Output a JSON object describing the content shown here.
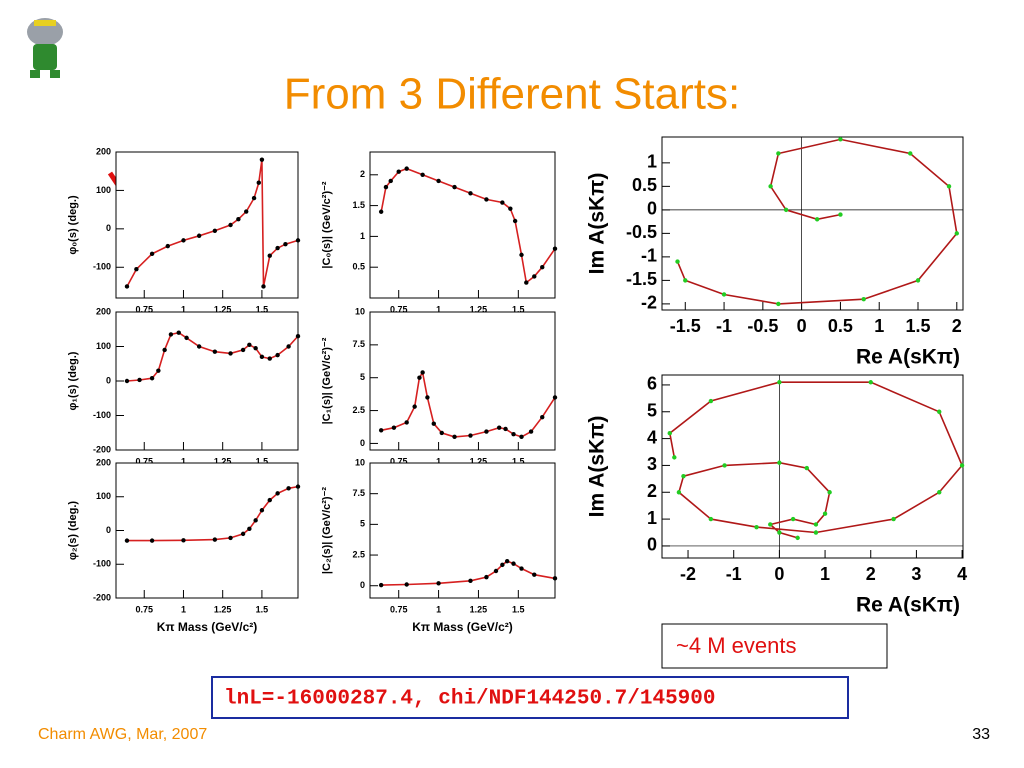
{
  "header": {
    "title": "From 3 Different Starts:"
  },
  "footer": {
    "left": "Charm AWG, Mar, 2007",
    "page": "33"
  },
  "notes": {
    "events": "~4 M events",
    "fit": "lnL=-16000287.4, chi/NDF144250.7/145900"
  },
  "chart_data": [
    {
      "type": "line",
      "ylabel": "φ₀(s)  (deg.)",
      "color": "#d62020",
      "marker_color": "#000000",
      "x": [
        0.64,
        0.7,
        0.8,
        0.9,
        1.0,
        1.1,
        1.2,
        1.3,
        1.35,
        1.4,
        1.45,
        1.48,
        1.5,
        1.51,
        1.55,
        1.6,
        1.65,
        1.73
      ],
      "values": [
        -150,
        -105,
        -65,
        -45,
        -30,
        -18,
        -5,
        10,
        25,
        45,
        80,
        120,
        180,
        -150,
        -70,
        -50,
        -40,
        -30
      ],
      "xlim": [
        0.57,
        1.73
      ],
      "ylim": [
        -180,
        200
      ],
      "xticks": [
        0.75,
        1,
        1.25,
        1.5
      ],
      "yticks": [
        -100,
        0,
        100,
        200
      ]
    },
    {
      "type": "line",
      "ylabel": "|C₀(s)|  (GeV/c²)⁻²",
      "color": "#d62020",
      "marker_color": "#000000",
      "x": [
        0.64,
        0.67,
        0.7,
        0.75,
        0.8,
        0.9,
        1.0,
        1.1,
        1.2,
        1.3,
        1.4,
        1.45,
        1.48,
        1.52,
        1.55,
        1.6,
        1.65,
        1.73
      ],
      "values": [
        1.4,
        1.8,
        1.9,
        2.05,
        2.1,
        2.0,
        1.9,
        1.8,
        1.7,
        1.6,
        1.55,
        1.45,
        1.25,
        0.7,
        0.25,
        0.35,
        0.5,
        0.8
      ],
      "xlim": [
        0.57,
        1.73
      ],
      "ylim": [
        0,
        2.37
      ],
      "xticks": [
        0.75,
        1,
        1.25,
        1.5
      ],
      "yticks": [
        0.5,
        1,
        1.5,
        2
      ]
    },
    {
      "type": "line",
      "ylabel": "φ₁(s)  (deg.)",
      "color": "#d62020",
      "marker_color": "#000000",
      "x": [
        0.64,
        0.72,
        0.8,
        0.84,
        0.88,
        0.92,
        0.97,
        1.02,
        1.1,
        1.2,
        1.3,
        1.38,
        1.42,
        1.46,
        1.5,
        1.55,
        1.6,
        1.67,
        1.73
      ],
      "values": [
        0,
        3,
        8,
        30,
        90,
        135,
        140,
        125,
        100,
        85,
        80,
        90,
        105,
        95,
        70,
        65,
        75,
        100,
        130
      ],
      "xlim": [
        0.57,
        1.73
      ],
      "ylim": [
        -200,
        200
      ],
      "xticks": [
        0.75,
        1,
        1.25,
        1.5
      ],
      "yticks": [
        -200,
        -100,
        0,
        100,
        200
      ]
    },
    {
      "type": "line",
      "ylabel": "|C₁(s)|  (GeV/c²)⁻²",
      "color": "#d62020",
      "marker_color": "#000000",
      "x": [
        0.64,
        0.72,
        0.8,
        0.85,
        0.88,
        0.9,
        0.93,
        0.97,
        1.02,
        1.1,
        1.2,
        1.3,
        1.38,
        1.42,
        1.47,
        1.52,
        1.58,
        1.65,
        1.73
      ],
      "values": [
        1,
        1.2,
        1.6,
        2.8,
        5,
        5.4,
        3.5,
        1.5,
        0.8,
        0.5,
        0.6,
        0.9,
        1.2,
        1.1,
        0.7,
        0.5,
        0.9,
        2,
        3.5
      ],
      "xlim": [
        0.57,
        1.73
      ],
      "ylim": [
        -0.5,
        10
      ],
      "xticks": [
        0.75,
        1,
        1.25,
        1.5
      ],
      "yticks": [
        0,
        2.5,
        5,
        7.5,
        10
      ]
    },
    {
      "type": "line",
      "ylabel": "φ₂(s)  (deg.)",
      "xlabel": "Kπ Mass (GeV/c²)",
      "color": "#d62020",
      "marker_color": "#000000",
      "x": [
        0.64,
        0.8,
        1.0,
        1.2,
        1.3,
        1.38,
        1.42,
        1.46,
        1.5,
        1.55,
        1.6,
        1.67,
        1.73
      ],
      "values": [
        -30,
        -30,
        -29,
        -27,
        -22,
        -10,
        5,
        30,
        60,
        90,
        110,
        125,
        130
      ],
      "xlim": [
        0.57,
        1.73
      ],
      "ylim": [
        -200,
        200
      ],
      "xticks": [
        0.75,
        1,
        1.25,
        1.5
      ],
      "yticks": [
        -200,
        -100,
        0,
        100,
        200
      ]
    },
    {
      "type": "line",
      "ylabel": "|C₂(s)|  (GeV/c²)⁻²",
      "xlabel": "Kπ Mass (GeV/c²)",
      "color": "#d62020",
      "marker_color": "#000000",
      "x": [
        0.64,
        0.8,
        1.0,
        1.2,
        1.3,
        1.36,
        1.4,
        1.43,
        1.47,
        1.52,
        1.6,
        1.73
      ],
      "values": [
        0.05,
        0.1,
        0.2,
        0.4,
        0.7,
        1.2,
        1.7,
        2.0,
        1.8,
        1.4,
        0.9,
        0.6
      ],
      "xlim": [
        0.57,
        1.73
      ],
      "ylim": [
        -1,
        10
      ],
      "xticks": [
        0.75,
        1,
        1.25,
        1.5
      ],
      "yticks": [
        0,
        2.5,
        5,
        7.5,
        10
      ]
    },
    {
      "type": "line",
      "ylabel": "Im A(sKπ)",
      "xlabel": "Re A(sKπ)",
      "color": "#b01818",
      "marker_color": "#22cc22",
      "zero_lines": true,
      "x": [
        -1.6,
        -1.5,
        -1.0,
        -0.3,
        0.8,
        1.5,
        2.0,
        1.9,
        1.4,
        0.5,
        -0.3,
        -0.4,
        -0.2,
        0.2,
        0.5
      ],
      "values": [
        -1.1,
        -1.5,
        -1.8,
        -2.0,
        -1.9,
        -1.5,
        -0.5,
        0.5,
        1.2,
        1.5,
        1.2,
        0.5,
        0.0,
        -0.2,
        -0.1
      ],
      "xlim": [
        -1.8,
        2.08
      ],
      "ylim": [
        -2.13,
        1.55
      ],
      "xticks": [
        -1.5,
        -1,
        -0.5,
        0,
        0.5,
        1,
        1.5,
        2
      ],
      "yticks": [
        -2,
        -1.5,
        -1,
        -0.5,
        0,
        0.5,
        1
      ]
    },
    {
      "type": "line",
      "ylabel": "Im A(sKπ)",
      "xlabel": "Re A(sKπ)",
      "color": "#b01818",
      "marker_color": "#22cc22",
      "zero_lines": true,
      "x": [
        0.4,
        0,
        -0.2,
        0.3,
        0.8,
        1,
        1.1,
        0.6,
        0,
        -1.2,
        -2.1,
        -2.2,
        -1.5,
        -0.5,
        0.8,
        2.5,
        3.5,
        4.0,
        3.5,
        2,
        0,
        -1.5,
        -2.4,
        -2.3
      ],
      "values": [
        0.3,
        0.5,
        0.8,
        1.0,
        0.8,
        1.2,
        2.0,
        2.9,
        3.1,
        3.0,
        2.6,
        2.0,
        1.0,
        0.7,
        0.5,
        1.0,
        2.0,
        3.0,
        5.0,
        6.1,
        6.1,
        5.4,
        4.2,
        3.3
      ],
      "xlim": [
        -2.57,
        4.02
      ],
      "ylim": [
        -0.45,
        6.37
      ],
      "xticks": [
        -2,
        -1,
        0,
        1,
        2,
        3,
        4
      ],
      "yticks": [
        0,
        1,
        2,
        3,
        4,
        5,
        6
      ]
    }
  ]
}
